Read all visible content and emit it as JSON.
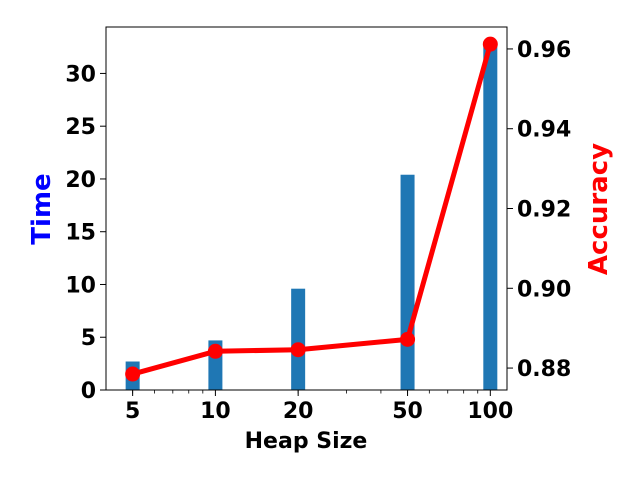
{
  "chart_data": {
    "type": "bar",
    "title": "",
    "xlabel": "Heap Size",
    "ylabel_left": "Time",
    "ylabel_right": "Accuracy",
    "x_ticks": [
      5,
      10,
      20,
      50,
      100
    ],
    "x_tick_labels": [
      "5",
      "10",
      "20",
      "50",
      "100"
    ],
    "x_scale": "log",
    "xlim": [
      4.0,
      115.0
    ],
    "ylim_left": [
      0,
      34.4
    ],
    "ylim_right": [
      0.8745,
      0.9655
    ],
    "y_ticks_left": [
      0,
      5,
      10,
      15,
      20,
      25,
      30
    ],
    "y_ticks_right": [
      0.88,
      0.9,
      0.92,
      0.94,
      0.96
    ],
    "y_tick_labels_right": [
      "0.88",
      "0.90",
      "0.92",
      "0.94",
      "0.96"
    ],
    "grid": false,
    "series": [
      {
        "type": "bar",
        "axis": "left",
        "color": "#1f77b4",
        "x": [
          5,
          10,
          20,
          50,
          100
        ],
        "values": [
          2.7,
          4.7,
          9.6,
          20.4,
          33.0
        ]
      },
      {
        "type": "line",
        "axis": "right",
        "color": "#ff0000",
        "x": [
          5,
          10,
          20,
          50,
          100
        ],
        "values": [
          0.8785,
          0.8842,
          0.8846,
          0.8872,
          0.9612
        ]
      }
    ],
    "colors": {
      "ylabel_left": "#0000ff",
      "ylabel_right": "#ff0000",
      "axis": "#000000",
      "text": "#000000"
    }
  }
}
